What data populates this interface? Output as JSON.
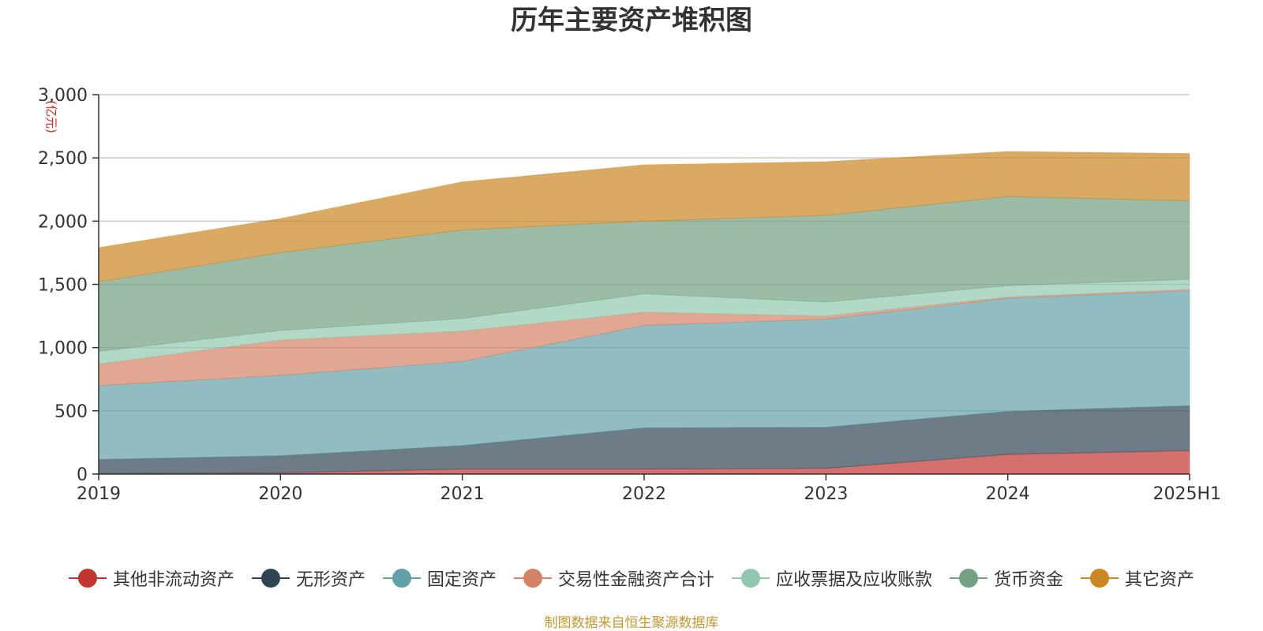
{
  "chart_data": {
    "type": "area",
    "stacked": true,
    "title": "历年主要资产堆积图",
    "ylabel": "(亿元)",
    "categories": [
      "2019",
      "2020",
      "2021",
      "2022",
      "2023",
      "2024",
      "2025H1"
    ],
    "ylim": [
      0,
      3000
    ],
    "yticks": [
      0,
      500,
      1000,
      1500,
      2000,
      2500,
      3000
    ],
    "ytick_labels": [
      "0",
      "500",
      "1,000",
      "1,500",
      "2,000",
      "2,500",
      "3,000"
    ],
    "grid": true,
    "legend_position": "bottom",
    "series": [
      {
        "name": "其他非流动资产",
        "color": "#c23531",
        "values": [
          5,
          10,
          40,
          40,
          45,
          155,
          185
        ]
      },
      {
        "name": "无形资产",
        "color": "#2f4554",
        "values": [
          110,
          135,
          185,
          325,
          325,
          340,
          355
        ]
      },
      {
        "name": "固定资产",
        "color": "#61a0a8",
        "values": [
          585,
          635,
          665,
          810,
          855,
          895,
          910
        ]
      },
      {
        "name": "交易性金融资产合计",
        "color": "#d48265",
        "values": [
          170,
          280,
          240,
          105,
          25,
          10,
          10
        ]
      },
      {
        "name": "应收票据及应收账款",
        "color": "#91c7ae",
        "values": [
          100,
          75,
          100,
          145,
          110,
          90,
          80
        ]
      },
      {
        "name": "货币资金",
        "color": "#749f83",
        "values": [
          550,
          615,
          700,
          575,
          685,
          705,
          620
        ]
      },
      {
        "name": "其它资产",
        "color": "#ca8622",
        "values": [
          270,
          270,
          380,
          445,
          425,
          355,
          375
        ]
      }
    ]
  },
  "source_note": "制图数据来自恒生聚源数据库"
}
